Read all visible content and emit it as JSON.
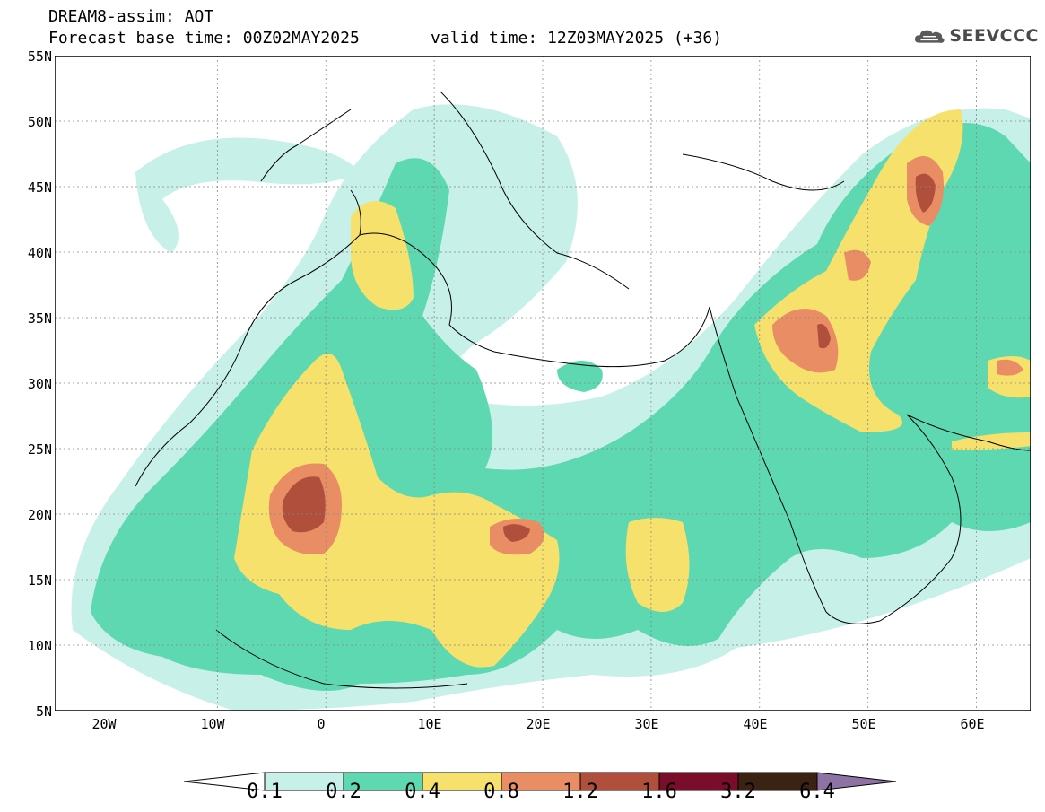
{
  "header": {
    "title_line1": "DREAM8-assim: AOT",
    "title_line2_base": "Forecast base time: 00Z02MAY2025",
    "title_line2_valid": "valid time: 12Z03MAY2025 (+36)",
    "logo_text": "SEEVCCC"
  },
  "map": {
    "lat_labels": [
      "55N",
      "50N",
      "45N",
      "40N",
      "35N",
      "30N",
      "25N",
      "20N",
      "15N",
      "10N",
      "5N"
    ],
    "lon_labels": [
      "20W",
      "10W",
      "0",
      "10E",
      "20E",
      "30E",
      "40E",
      "50E",
      "60E"
    ],
    "lon_range": [
      -25,
      65
    ],
    "lat_range": [
      5,
      55
    ]
  },
  "legend": {
    "levels": [
      "0.1",
      "0.2",
      "0.4",
      "0.8",
      "1.2",
      "1.6",
      "3.2",
      "6.4"
    ],
    "colors": [
      "#ffffff",
      "#c6f0e8",
      "#5ed8b0",
      "#f5e16b",
      "#e98d64",
      "#b04f3c",
      "#7a0d2a",
      "#3b2313",
      "#8e72a4"
    ]
  }
}
